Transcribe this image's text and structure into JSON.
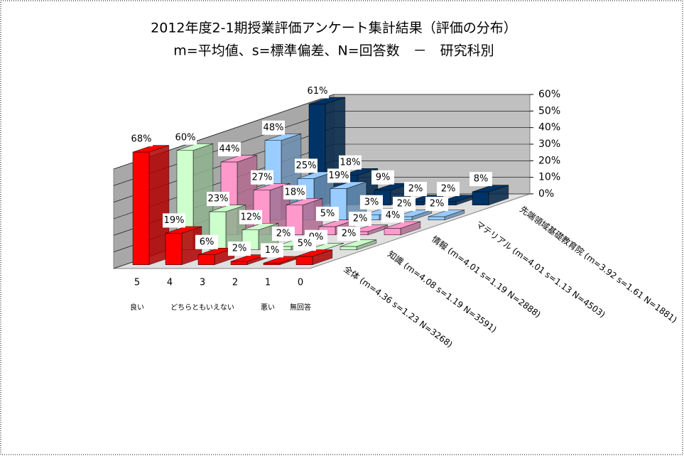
{
  "chart_data": {
    "type": "bar3d",
    "title": "2012年度2-1期授業評価アンケート集計結果（評価の分布）",
    "subtitle": "m=平均値、s=標準偏差、N=回答数　－　研究科別",
    "categories": [
      "5",
      "4",
      "3",
      "2",
      "1",
      "0"
    ],
    "category_descriptions": [
      "良い",
      null,
      "どちらともいえない",
      null,
      "悪い",
      "無回答"
    ],
    "series": [
      {
        "name": "全体 (m=4.36 s=1.23 N=3268)",
        "color": "#ff0000",
        "values": [
          68,
          19,
          6,
          2,
          1,
          5
        ],
        "value_labels": [
          "68%",
          "19%",
          "6%",
          "2%",
          "1%",
          "5%"
        ]
      },
      {
        "name": "知識 (m=4.08 s=1.19 N=3591)",
        "color": "#ccffcc",
        "values": [
          60,
          23,
          12,
          2,
          0,
          2
        ],
        "value_labels": [
          "60%",
          "23%",
          "12%",
          "2%",
          "0%",
          "2%"
        ]
      },
      {
        "name": "情報 (m=4.01 s=1.19 N=2888)",
        "color": "#ff99cc",
        "values": [
          44,
          27,
          18,
          5,
          2,
          4
        ],
        "value_labels": [
          "44%",
          "27%",
          "18%",
          "5%",
          "2%",
          "4%"
        ]
      },
      {
        "name": "マテリアル (m=4.01 s=1.13 N=4503)",
        "color": "#99ccff",
        "values": [
          48,
          25,
          19,
          3,
          2,
          2
        ],
        "value_labels": [
          "48%",
          "25%",
          "19%",
          "3%",
          "2%",
          "2%"
        ]
      },
      {
        "name": "先端領域基礎教育院 (m=3.92 s=1.61 N=1881)",
        "color": "#003366",
        "values": [
          61,
          18,
          9,
          2,
          2,
          8
        ],
        "value_labels": [
          "61%",
          "18%",
          "9%",
          "2%",
          "2%",
          "8%"
        ]
      }
    ],
    "ylim": [
      0,
      60
    ],
    "yticks": [
      {
        "value": 0,
        "label": "0%"
      },
      {
        "value": 10,
        "label": "10%"
      },
      {
        "value": 20,
        "label": "20%"
      },
      {
        "value": 30,
        "label": "30%"
      },
      {
        "value": 40,
        "label": "40%"
      },
      {
        "value": 50,
        "label": "50%"
      },
      {
        "value": 60,
        "label": "60%"
      }
    ],
    "grid": true
  }
}
